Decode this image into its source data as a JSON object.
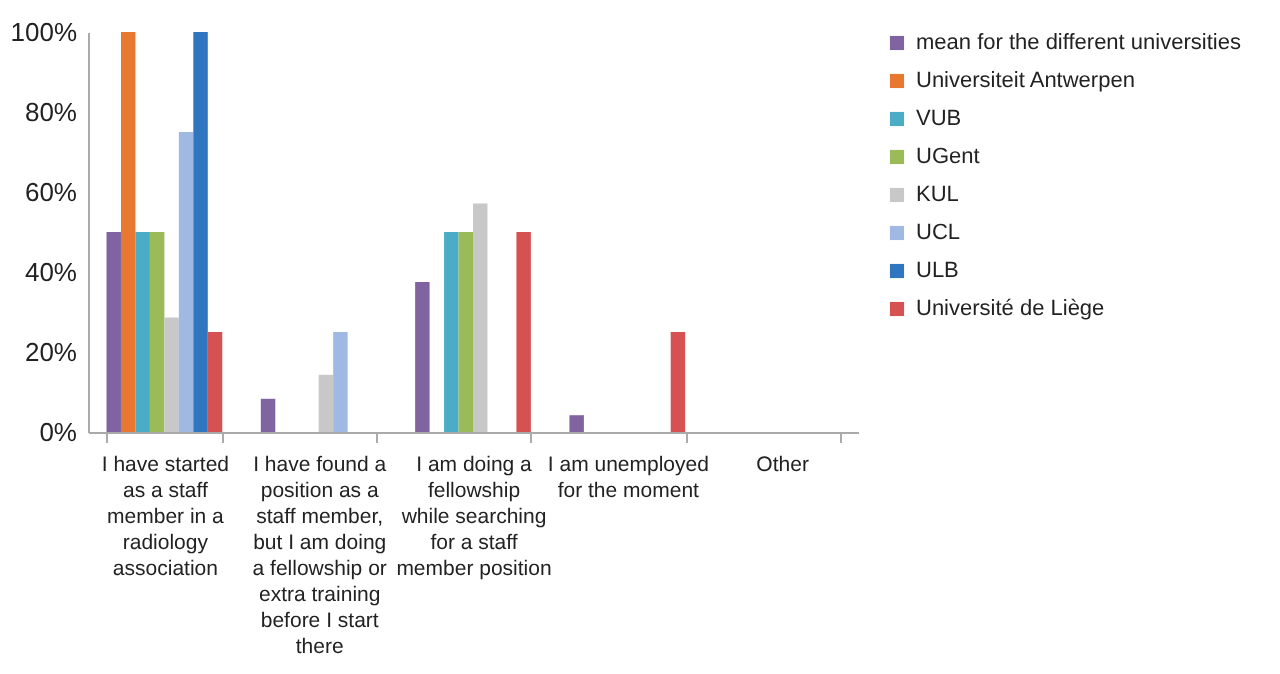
{
  "chart_data": {
    "type": "bar",
    "categories": [
      "I have started as a staff member in a radiology association",
      "I have found a position as a staff member, but I am doing a fellowship or extra training before I start there",
      "I am doing a fellowship while searching for a staff member position",
      "I am unemployed for the moment",
      "Other"
    ],
    "series": [
      {
        "name": "mean for the different universities",
        "color": "#8064a2",
        "values": [
          50,
          8.3,
          37.5,
          4.2,
          0
        ]
      },
      {
        "name": "Universiteit Antwerpen",
        "color": "#e8782f",
        "values": [
          100,
          0,
          0,
          0,
          0
        ]
      },
      {
        "name": "VUB",
        "color": "#4bacc6",
        "values": [
          50,
          0,
          50,
          0,
          0
        ]
      },
      {
        "name": "UGent",
        "color": "#9bbb59",
        "values": [
          50,
          0,
          50,
          0,
          0
        ]
      },
      {
        "name": "KUL",
        "color": "#c8c8c8",
        "values": [
          28.6,
          14.3,
          57.1,
          0,
          0
        ]
      },
      {
        "name": "UCL",
        "color": "#a0b9e2",
        "values": [
          75,
          25,
          0,
          0,
          0
        ]
      },
      {
        "name": "ULB",
        "color": "#2f75bf",
        "values": [
          100,
          0,
          0,
          0,
          0
        ]
      },
      {
        "name": "Université de Liège",
        "color": "#d65252",
        "values": [
          25,
          0,
          50,
          25,
          0
        ]
      }
    ],
    "ylim": [
      0,
      100
    ],
    "yticks": [
      {
        "value": 0,
        "label": "0%"
      },
      {
        "value": 20,
        "label": "20%"
      },
      {
        "value": 40,
        "label": "40%"
      },
      {
        "value": 60,
        "label": "60%"
      },
      {
        "value": 80,
        "label": "80%"
      },
      {
        "value": 100,
        "label": "100%"
      }
    ],
    "legend": "right",
    "grid": false
  }
}
